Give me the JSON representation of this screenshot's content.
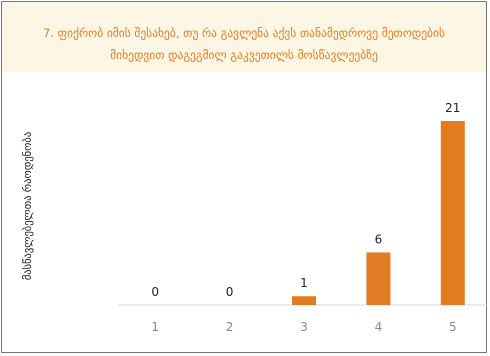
{
  "chart_data": {
    "type": "bar",
    "title": "7. ფიქრობ იმის შესახებ, თუ რა გავლენა აქვს თანამედროვე მეთოდების მიხედვით დაგეგმილ გაკვეთილს მოსწავლეებზე",
    "ylabel": "მასწავლებელთა რაოდენობა",
    "xlabel": "",
    "categories": [
      "1",
      "2",
      "3",
      "4",
      "5"
    ],
    "values": [
      0,
      0,
      1,
      6,
      21
    ],
    "ylim": [
      0,
      21
    ],
    "grid": false,
    "legend": "none",
    "bar_color": "#e07d22",
    "title_color": "#e07d22",
    "title_background": "#fdf6e4"
  }
}
